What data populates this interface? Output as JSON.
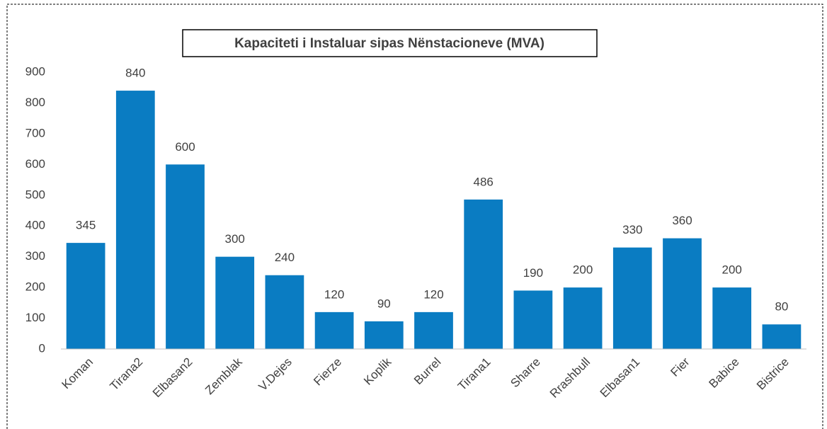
{
  "chart_data": {
    "type": "bar",
    "title": "Kapaciteti i Instaluar sipas Nënstacioneve (MVA)",
    "categories": [
      "Koman",
      "Tirana2",
      "Elbasan2",
      "Zemblak",
      "V.Dejes",
      "Fierze",
      "Koplik",
      "Burrel",
      "Tirana1",
      "Sharre",
      "Rrashbull",
      "Elbasan1",
      "Fier",
      "Babice",
      "Bistrice"
    ],
    "values": [
      345,
      840,
      600,
      300,
      240,
      120,
      90,
      120,
      486,
      190,
      200,
      330,
      360,
      200,
      80
    ],
    "color": "#0a7cc2",
    "ylim": [
      0,
      900
    ],
    "yticks": [
      0,
      100,
      200,
      300,
      400,
      500,
      600,
      700,
      800,
      900
    ],
    "grid": false
  }
}
